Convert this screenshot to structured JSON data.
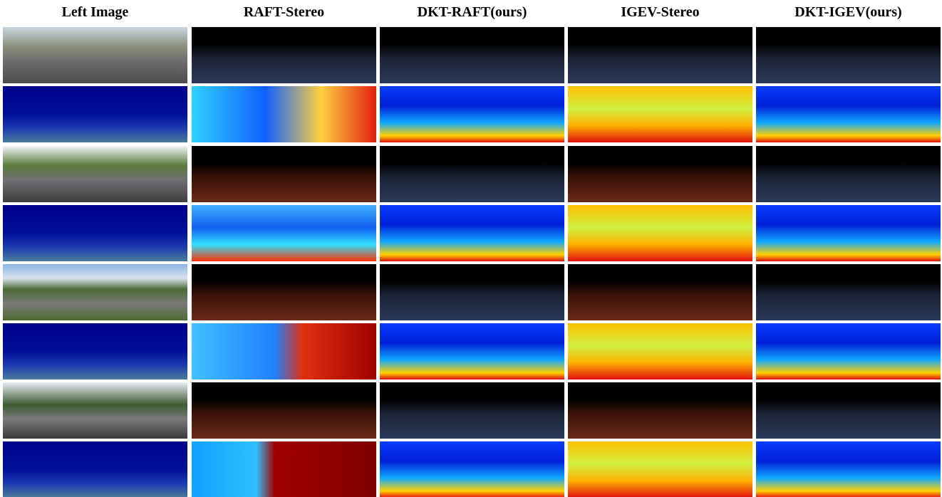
{
  "header": {
    "columns": [
      "Left Image",
      "RAFT-Stereo",
      "DKT-RAFT(ours)",
      "IGEV-Stereo",
      "DKT-IGEV(ours)"
    ]
  }
}
